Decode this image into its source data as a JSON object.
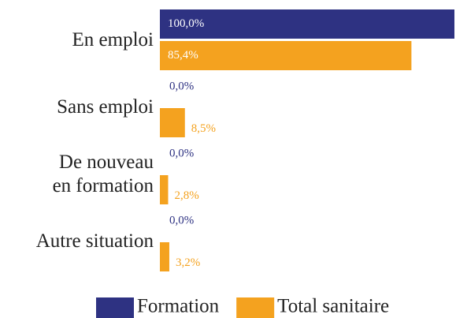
{
  "chart_data": {
    "type": "hbar",
    "categories": [
      "En emploi",
      "Sans emploi",
      "De nouveau\nen formation",
      "Autre situation"
    ],
    "series": [
      {
        "name": "Formation",
        "color": "#2e3282",
        "values": [
          100.0,
          0.0,
          0.0,
          0.0
        ],
        "value_labels": [
          "100,0%",
          "0,0%",
          "0,0%",
          "0,0%"
        ]
      },
      {
        "name": "Total sanitaire",
        "color": "#f4a21f",
        "values": [
          85.4,
          8.5,
          2.8,
          3.2
        ],
        "value_labels": [
          "85,4%",
          "8,5%",
          "2,8%",
          "3,2%"
        ]
      }
    ],
    "xlim": [
      0,
      100
    ],
    "legend": "bottom"
  }
}
